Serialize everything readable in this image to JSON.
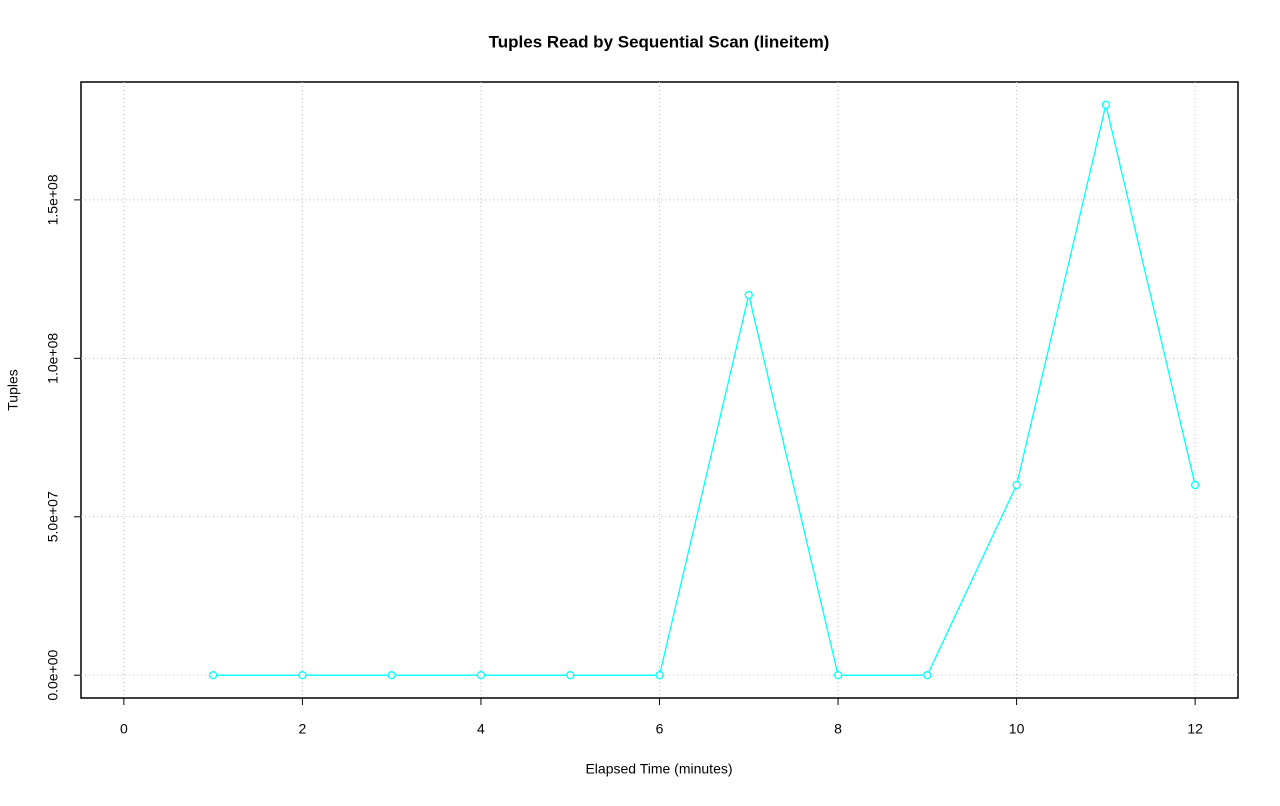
{
  "chart_data": {
    "type": "line",
    "title": "Tuples Read by Sequential Scan (lineitem)",
    "x_label": "Elapsed Time (minutes)",
    "y_label": "Tuples",
    "x": [
      1,
      2,
      3,
      4,
      5,
      6,
      7,
      8,
      9,
      10,
      11,
      12
    ],
    "series": [
      {
        "color": "#00ffff",
        "values": [
          0,
          0,
          0,
          0,
          0,
          0,
          120000000,
          0,
          0,
          60000000,
          180000000,
          60000000
        ]
      }
    ],
    "xlim": [
      -0.48,
      12.48
    ],
    "xticks": [
      0,
      2,
      4,
      6,
      8,
      10,
      12
    ],
    "ylim": [
      -7200000,
      187200000
    ],
    "yticks": [
      {
        "value": 0,
        "label": "0.0e+00"
      },
      {
        "value": 50000000,
        "label": "5.0e+07"
      },
      {
        "value": 100000000,
        "label": "1.0e+08"
      },
      {
        "value": 150000000,
        "label": "1.5e+08"
      }
    ],
    "grid": true
  }
}
